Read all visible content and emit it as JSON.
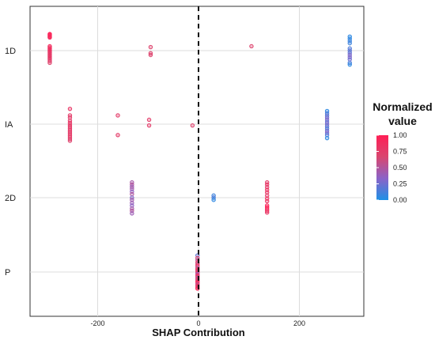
{
  "chart_data": {
    "type": "scatter",
    "title": "",
    "xlabel": "SHAP Contribution",
    "ylabel": "",
    "xlim": [
      -330,
      330
    ],
    "x_ticks": [
      -200,
      0,
      200
    ],
    "x_tick_labels": [
      "-200",
      "0",
      "200"
    ],
    "categories": [
      "1D",
      "IA",
      "2D",
      "P"
    ],
    "reference_line_x": 0,
    "grid": true,
    "legend": {
      "title_line1": "Normalized",
      "title_line2": "value",
      "ticks": [
        1.0,
        0.75,
        0.5,
        0.25,
        0.0
      ],
      "tick_labels": [
        "1.00",
        "0.75",
        "0.50",
        "0.25",
        "0.00"
      ],
      "placement": "right",
      "colors": [
        "#1E90E6",
        "#8A63C8",
        "#D9466F",
        "#FF1F55"
      ]
    },
    "series": [
      {
        "category": "1D",
        "points": [
          {
            "x": -295,
            "y": 0.38,
            "v": 1.0
          },
          {
            "x": -295,
            "y": 0.36,
            "v": 1.0
          },
          {
            "x": -295,
            "y": 0.34,
            "v": 0.95
          },
          {
            "x": -295,
            "y": 0.32,
            "v": 0.9
          },
          {
            "x": -295,
            "y": 0.3,
            "v": 0.95
          },
          {
            "x": -295,
            "y": 0.1,
            "v": 0.9
          },
          {
            "x": -295,
            "y": 0.07,
            "v": 0.85
          },
          {
            "x": -295,
            "y": 0.04,
            "v": 0.9
          },
          {
            "x": -295,
            "y": 0.01,
            "v": 0.85
          },
          {
            "x": -295,
            "y": -0.02,
            "v": 0.8
          },
          {
            "x": -295,
            "y": -0.05,
            "v": 0.8
          },
          {
            "x": -295,
            "y": -0.08,
            "v": 0.75
          },
          {
            "x": -295,
            "y": -0.11,
            "v": 0.8
          },
          {
            "x": -295,
            "y": -0.14,
            "v": 0.75
          },
          {
            "x": -295,
            "y": -0.17,
            "v": 0.8
          },
          {
            "x": -295,
            "y": -0.2,
            "v": 0.75
          },
          {
            "x": -295,
            "y": -0.24,
            "v": 0.75
          },
          {
            "x": -295,
            "y": -0.28,
            "v": 0.7
          },
          {
            "x": -95,
            "y": 0.08,
            "v": 0.7
          },
          {
            "x": -95,
            "y": -0.06,
            "v": 0.7
          },
          {
            "x": -95,
            "y": -0.1,
            "v": 0.7
          },
          {
            "x": 105,
            "y": 0.1,
            "v": 0.7
          },
          {
            "x": 300,
            "y": 0.32,
            "v": 0.05
          },
          {
            "x": 300,
            "y": 0.27,
            "v": 0.05
          },
          {
            "x": 300,
            "y": 0.22,
            "v": 0.1
          },
          {
            "x": 300,
            "y": 0.17,
            "v": 0.1
          },
          {
            "x": 300,
            "y": 0.05,
            "v": 0.15
          },
          {
            "x": 300,
            "y": 0.0,
            "v": 0.2
          },
          {
            "x": 300,
            "y": -0.05,
            "v": 0.2
          },
          {
            "x": 300,
            "y": -0.1,
            "v": 0.3
          },
          {
            "x": 300,
            "y": -0.15,
            "v": 0.3
          },
          {
            "x": 300,
            "y": -0.2,
            "v": 0.25
          },
          {
            "x": 300,
            "y": -0.28,
            "v": 0.15
          },
          {
            "x": 300,
            "y": -0.32,
            "v": 0.05
          }
        ]
      },
      {
        "category": "IA",
        "points": [
          {
            "x": -255,
            "y": 0.35,
            "v": 0.8
          },
          {
            "x": -255,
            "y": 0.2,
            "v": 0.75
          },
          {
            "x": -255,
            "y": 0.15,
            "v": 0.75
          },
          {
            "x": -255,
            "y": 0.08,
            "v": 0.75
          },
          {
            "x": -255,
            "y": 0.03,
            "v": 0.8
          },
          {
            "x": -255,
            "y": -0.02,
            "v": 0.75
          },
          {
            "x": -255,
            "y": -0.06,
            "v": 0.8
          },
          {
            "x": -255,
            "y": -0.1,
            "v": 0.75
          },
          {
            "x": -255,
            "y": -0.14,
            "v": 0.8
          },
          {
            "x": -255,
            "y": -0.18,
            "v": 0.75
          },
          {
            "x": -255,
            "y": -0.22,
            "v": 0.75
          },
          {
            "x": -255,
            "y": -0.26,
            "v": 0.8
          },
          {
            "x": -255,
            "y": -0.3,
            "v": 0.75
          },
          {
            "x": -255,
            "y": -0.34,
            "v": 0.75
          },
          {
            "x": -255,
            "y": -0.38,
            "v": 0.7
          },
          {
            "x": -160,
            "y": 0.2,
            "v": 0.75
          },
          {
            "x": -160,
            "y": -0.25,
            "v": 0.75
          },
          {
            "x": -98,
            "y": 0.1,
            "v": 0.75
          },
          {
            "x": -98,
            "y": -0.03,
            "v": 0.75
          },
          {
            "x": -12,
            "y": -0.03,
            "v": 0.7
          },
          {
            "x": 255,
            "y": 0.3,
            "v": 0.05
          },
          {
            "x": 255,
            "y": 0.25,
            "v": 0.15
          },
          {
            "x": 255,
            "y": 0.2,
            "v": 0.2
          },
          {
            "x": 255,
            "y": 0.15,
            "v": 0.25
          },
          {
            "x": 255,
            "y": 0.1,
            "v": 0.3
          },
          {
            "x": 255,
            "y": 0.05,
            "v": 0.2
          },
          {
            "x": 255,
            "y": 0.0,
            "v": 0.3
          },
          {
            "x": 255,
            "y": -0.05,
            "v": 0.2
          },
          {
            "x": 255,
            "y": -0.1,
            "v": 0.15
          },
          {
            "x": 255,
            "y": -0.15,
            "v": 0.25
          },
          {
            "x": 255,
            "y": -0.2,
            "v": 0.3
          },
          {
            "x": 255,
            "y": -0.25,
            "v": 0.15
          },
          {
            "x": 255,
            "y": -0.32,
            "v": 0.05
          }
        ]
      },
      {
        "category": "2D",
        "points": [
          {
            "x": -132,
            "y": 0.35,
            "v": 0.45
          },
          {
            "x": -132,
            "y": 0.3,
            "v": 0.5
          },
          {
            "x": -132,
            "y": 0.25,
            "v": 0.4
          },
          {
            "x": -132,
            "y": 0.2,
            "v": 0.45
          },
          {
            "x": -132,
            "y": 0.14,
            "v": 0.35
          },
          {
            "x": -132,
            "y": 0.08,
            "v": 0.5
          },
          {
            "x": -132,
            "y": 0.0,
            "v": 0.3
          },
          {
            "x": -132,
            "y": -0.05,
            "v": 0.45
          },
          {
            "x": -132,
            "y": -0.12,
            "v": 0.4
          },
          {
            "x": -132,
            "y": -0.18,
            "v": 0.35
          },
          {
            "x": -132,
            "y": -0.25,
            "v": 0.45
          },
          {
            "x": -132,
            "y": -0.3,
            "v": 0.5
          },
          {
            "x": -132,
            "y": -0.36,
            "v": 0.4
          },
          {
            "x": 30,
            "y": 0.05,
            "v": 0.1
          },
          {
            "x": 30,
            "y": 0.0,
            "v": 0.15
          },
          {
            "x": 30,
            "y": -0.05,
            "v": 0.05
          },
          {
            "x": 136,
            "y": 0.35,
            "v": 0.75
          },
          {
            "x": 136,
            "y": 0.3,
            "v": 0.8
          },
          {
            "x": 136,
            "y": 0.24,
            "v": 0.75
          },
          {
            "x": 136,
            "y": 0.18,
            "v": 0.85
          },
          {
            "x": 136,
            "y": 0.12,
            "v": 0.8
          },
          {
            "x": 136,
            "y": 0.05,
            "v": 0.75
          },
          {
            "x": 136,
            "y": -0.02,
            "v": 0.9
          },
          {
            "x": 136,
            "y": -0.08,
            "v": 0.8
          },
          {
            "x": 136,
            "y": -0.18,
            "v": 0.95
          },
          {
            "x": 136,
            "y": -0.22,
            "v": 1.0
          },
          {
            "x": 136,
            "y": -0.26,
            "v": 0.95
          },
          {
            "x": 136,
            "y": -0.3,
            "v": 0.85
          },
          {
            "x": 136,
            "y": -0.34,
            "v": 0.8
          }
        ]
      },
      {
        "category": "P",
        "points": [
          {
            "x": -2,
            "y": 0.38,
            "v": 0.2
          },
          {
            "x": -2,
            "y": 0.32,
            "v": 0.7
          },
          {
            "x": -2,
            "y": 0.27,
            "v": 0.5
          },
          {
            "x": -2,
            "y": 0.22,
            "v": 0.8
          },
          {
            "x": -2,
            "y": 0.18,
            "v": 0.6
          },
          {
            "x": -2,
            "y": 0.14,
            "v": 0.9
          },
          {
            "x": -2,
            "y": 0.1,
            "v": 0.5
          },
          {
            "x": -2,
            "y": 0.07,
            "v": 0.7
          },
          {
            "x": -2,
            "y": 0.04,
            "v": 0.95
          },
          {
            "x": -2,
            "y": 0.01,
            "v": 0.6
          },
          {
            "x": -2,
            "y": -0.02,
            "v": 0.8
          },
          {
            "x": -2,
            "y": -0.05,
            "v": 0.4
          },
          {
            "x": -2,
            "y": -0.08,
            "v": 0.9
          },
          {
            "x": -2,
            "y": -0.11,
            "v": 0.7
          },
          {
            "x": -2,
            "y": -0.14,
            "v": 0.5
          },
          {
            "x": -2,
            "y": -0.17,
            "v": 0.85
          },
          {
            "x": -2,
            "y": -0.2,
            "v": 0.6
          },
          {
            "x": -2,
            "y": -0.23,
            "v": 1.0
          },
          {
            "x": -2,
            "y": -0.26,
            "v": 0.75
          },
          {
            "x": -2,
            "y": -0.29,
            "v": 0.55
          },
          {
            "x": -2,
            "y": -0.32,
            "v": 0.9
          },
          {
            "x": -2,
            "y": -0.35,
            "v": 0.7
          },
          {
            "x": -2,
            "y": -0.38,
            "v": 1.0
          }
        ]
      }
    ]
  }
}
